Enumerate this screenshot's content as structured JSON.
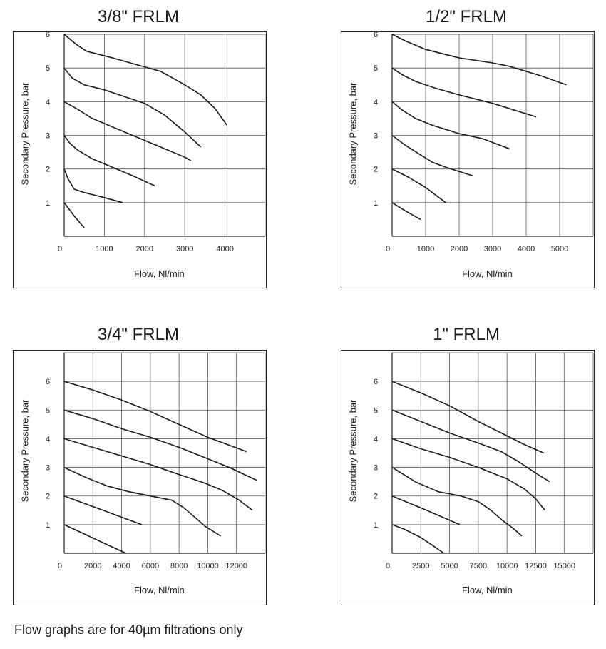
{
  "footnote": "Flow graphs are for 40µm filtrations only",
  "chart_data": [
    {
      "type": "line",
      "title": "3/8\" FRLM",
      "xlabel": "Flow, Nl/min",
      "ylabel": "Secondary Pressure, bar",
      "xlim": [
        0,
        5000
      ],
      "ylim": [
        0,
        6
      ],
      "xticks": [
        0,
        1000,
        2000,
        3000,
        4000
      ],
      "yticks": [
        1,
        2,
        3,
        4,
        5,
        6
      ],
      "grid": true,
      "series": [
        {
          "x": [
            0,
            300,
            550
          ],
          "y": [
            6.0,
            5.7,
            5.5
          ]
        },
        {
          "x": [
            550,
            1200,
            1800,
            2400,
            3000,
            3400,
            3750,
            4050
          ],
          "y": [
            5.5,
            5.3,
            5.1,
            4.9,
            4.5,
            4.2,
            3.8,
            3.3
          ]
        },
        {
          "x": [
            0,
            200,
            500,
            1000,
            1500,
            2000,
            2500,
            3000,
            3400
          ],
          "y": [
            5.0,
            4.7,
            4.5,
            4.35,
            4.15,
            3.95,
            3.6,
            3.1,
            2.65
          ]
        },
        {
          "x": [
            0,
            300,
            700,
            1200,
            1800,
            2400,
            3000,
            3150
          ],
          "y": [
            4.0,
            3.8,
            3.5,
            3.25,
            2.95,
            2.65,
            2.35,
            2.25
          ]
        },
        {
          "x": [
            0,
            150,
            350,
            700,
            1200,
            1700,
            2250
          ],
          "y": [
            3.0,
            2.75,
            2.55,
            2.3,
            2.05,
            1.8,
            1.5
          ]
        },
        {
          "x": [
            0,
            100,
            250,
            500,
            1000,
            1450
          ],
          "y": [
            2.0,
            1.7,
            1.4,
            1.3,
            1.15,
            1.0
          ]
        },
        {
          "x": [
            0,
            250,
            500
          ],
          "y": [
            1.0,
            0.6,
            0.25
          ]
        }
      ]
    },
    {
      "type": "line",
      "title": "1/2\" FRLM",
      "xlabel": "Flow, Nl/min",
      "ylabel": "Secondary Pressure, bar",
      "xlim": [
        0,
        6000
      ],
      "ylim": [
        0,
        6
      ],
      "xticks": [
        0,
        1000,
        2000,
        3000,
        4000,
        5000
      ],
      "yticks": [
        1,
        2,
        3,
        4,
        5,
        6
      ],
      "grid": true,
      "series": [
        {
          "x": [
            0,
            400,
            1000,
            2000,
            3000,
            3500,
            4000,
            4500,
            5200
          ],
          "y": [
            6.0,
            5.8,
            5.55,
            5.3,
            5.15,
            5.05,
            4.9,
            4.75,
            4.5
          ]
        },
        {
          "x": [
            0,
            300,
            700,
            1300,
            2000,
            3000,
            4300
          ],
          "y": [
            5.0,
            4.8,
            4.6,
            4.4,
            4.2,
            3.95,
            3.55
          ]
        },
        {
          "x": [
            0,
            300,
            700,
            1200,
            2000,
            2700,
            3500
          ],
          "y": [
            4.0,
            3.75,
            3.5,
            3.3,
            3.05,
            2.9,
            2.6
          ]
        },
        {
          "x": [
            0,
            400,
            800,
            1200,
            1600,
            2400
          ],
          "y": [
            3.0,
            2.7,
            2.45,
            2.2,
            2.05,
            1.8
          ]
        },
        {
          "x": [
            0,
            500,
            1000,
            1600
          ],
          "y": [
            2.0,
            1.75,
            1.45,
            1.0
          ]
        },
        {
          "x": [
            0,
            400,
            850
          ],
          "y": [
            1.0,
            0.75,
            0.5
          ]
        }
      ]
    },
    {
      "type": "line",
      "title": "3/4\" FRLM",
      "xlabel": "Flow, Nl/min",
      "ylabel": "Secondary Pressure, bar",
      "xlim": [
        0,
        14000
      ],
      "ylim": [
        0,
        7
      ],
      "xticks": [
        0,
        2000,
        4000,
        6000,
        8000,
        10000,
        12000
      ],
      "yticks": [
        1,
        2,
        3,
        4,
        5,
        6
      ],
      "grid": true,
      "series": [
        {
          "x": [
            0,
            2000,
            4000,
            6000,
            8000,
            10000,
            12700
          ],
          "y": [
            6.0,
            5.7,
            5.35,
            4.95,
            4.5,
            4.05,
            3.55
          ]
        },
        {
          "x": [
            0,
            2000,
            4000,
            6000,
            8000,
            10000,
            11500,
            13400
          ],
          "y": [
            5.0,
            4.7,
            4.35,
            4.05,
            3.7,
            3.3,
            3.0,
            2.55
          ]
        },
        {
          "x": [
            0,
            2000,
            4000,
            6000,
            8000,
            9800,
            11000,
            12200,
            13100
          ],
          "y": [
            4.0,
            3.7,
            3.4,
            3.1,
            2.75,
            2.45,
            2.2,
            1.85,
            1.5
          ]
        },
        {
          "x": [
            0,
            1500,
            3000,
            4500,
            6000,
            7500,
            8300,
            9000,
            9800,
            10900
          ],
          "y": [
            3.0,
            2.65,
            2.35,
            2.15,
            2.0,
            1.85,
            1.6,
            1.3,
            0.95,
            0.6
          ]
        },
        {
          "x": [
            0,
            2700,
            5400
          ],
          "y": [
            2.0,
            1.5,
            1.0
          ]
        },
        {
          "x": [
            0,
            1500,
            3000,
            4300
          ],
          "y": [
            1.0,
            0.65,
            0.3,
            0.0
          ]
        }
      ]
    },
    {
      "type": "line",
      "title": "1\" FRLM",
      "xlabel": "Flow, Nl/min",
      "ylabel": "Secondary Pressure, bar",
      "xlim": [
        0,
        17500
      ],
      "ylim": [
        0,
        7
      ],
      "xticks": [
        0,
        2500,
        5000,
        7500,
        10000,
        12500,
        15000
      ],
      "yticks": [
        1,
        2,
        3,
        4,
        5,
        6
      ],
      "grid": true,
      "series": [
        {
          "x": [
            0,
            2500,
            5000,
            7500,
            10000,
            11500,
            13200
          ],
          "y": [
            6.0,
            5.6,
            5.15,
            4.6,
            4.1,
            3.8,
            3.5
          ]
        },
        {
          "x": [
            0,
            2500,
            5000,
            7500,
            9500,
            11000,
            12500,
            13700
          ],
          "y": [
            5.0,
            4.6,
            4.2,
            3.85,
            3.55,
            3.2,
            2.8,
            2.5
          ]
        },
        {
          "x": [
            0,
            2500,
            5000,
            7500,
            10000,
            11500,
            12500,
            13300
          ],
          "y": [
            4.0,
            3.65,
            3.35,
            3.0,
            2.6,
            2.25,
            1.9,
            1.5
          ]
        },
        {
          "x": [
            0,
            2000,
            4000,
            6000,
            7500,
            8600,
            9600,
            10600,
            11300
          ],
          "y": [
            3.0,
            2.5,
            2.15,
            2.0,
            1.8,
            1.5,
            1.15,
            0.85,
            0.6
          ]
        },
        {
          "x": [
            0,
            3000,
            5900
          ],
          "y": [
            2.0,
            1.5,
            1.0
          ]
        },
        {
          "x": [
            0,
            1000,
            2500,
            3800,
            4500
          ],
          "y": [
            1.0,
            0.85,
            0.55,
            0.2,
            0.0
          ]
        }
      ]
    }
  ]
}
